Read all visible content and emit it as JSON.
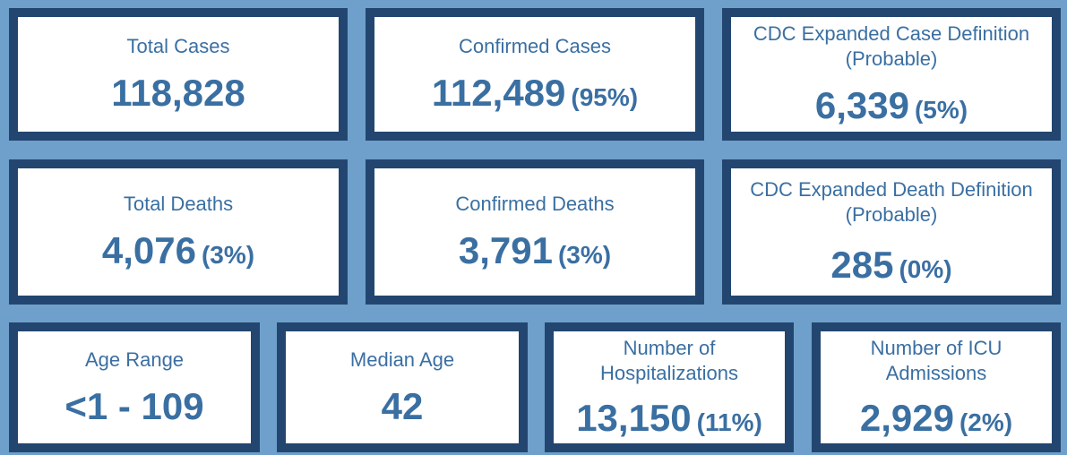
{
  "cards": {
    "total_cases": {
      "label": "Total Cases",
      "value": "118,828",
      "pct": ""
    },
    "confirmed_cases": {
      "label": "Confirmed Cases",
      "value": "112,489",
      "pct": "(95%)"
    },
    "probable_cases": {
      "label": "CDC Expanded Case Definition (Probable)",
      "value": "6,339",
      "pct": "(5%)"
    },
    "total_deaths": {
      "label": "Total Deaths",
      "value": "4,076",
      "pct": "(3%)"
    },
    "confirmed_deaths": {
      "label": "Confirmed Deaths",
      "value": "3,791",
      "pct": "(3%)"
    },
    "probable_deaths": {
      "label": "CDC Expanded Death Definition (Probable)",
      "value": "285",
      "pct": "(0%)"
    },
    "age_range": {
      "label": "Age Range",
      "value": "<1 - 109",
      "pct": ""
    },
    "median_age": {
      "label": "Median Age",
      "value": "42",
      "pct": ""
    },
    "hospitalizations": {
      "label": "Number of Hospitalizations",
      "value": "13,150",
      "pct": "(11%)"
    },
    "icu_admissions": {
      "label": "Number of ICU Admissions",
      "value": "2,929",
      "pct": "(2%)"
    }
  },
  "colors": {
    "background": "#6fa0cc",
    "border": "#234670",
    "text": "#3a6fa2"
  }
}
